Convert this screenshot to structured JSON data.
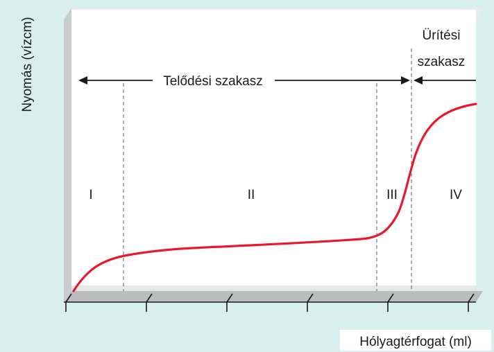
{
  "figure": {
    "y_axis_label": "Nyomás (vízcm)",
    "x_axis_label": "Hólyagtérfogat (ml)",
    "filling_phase_label": "Telődési szakasz",
    "voiding_phase_label_line1": "Ürítési",
    "voiding_phase_label_line2": "szakasz",
    "phases": [
      "I",
      "II",
      "III",
      "IV"
    ]
  },
  "colors": {
    "background": "#d9efee",
    "panel": "#ffffff",
    "curve": "#e8182d",
    "axis": "#1a1a1a",
    "wall": "#c9ccce"
  }
}
